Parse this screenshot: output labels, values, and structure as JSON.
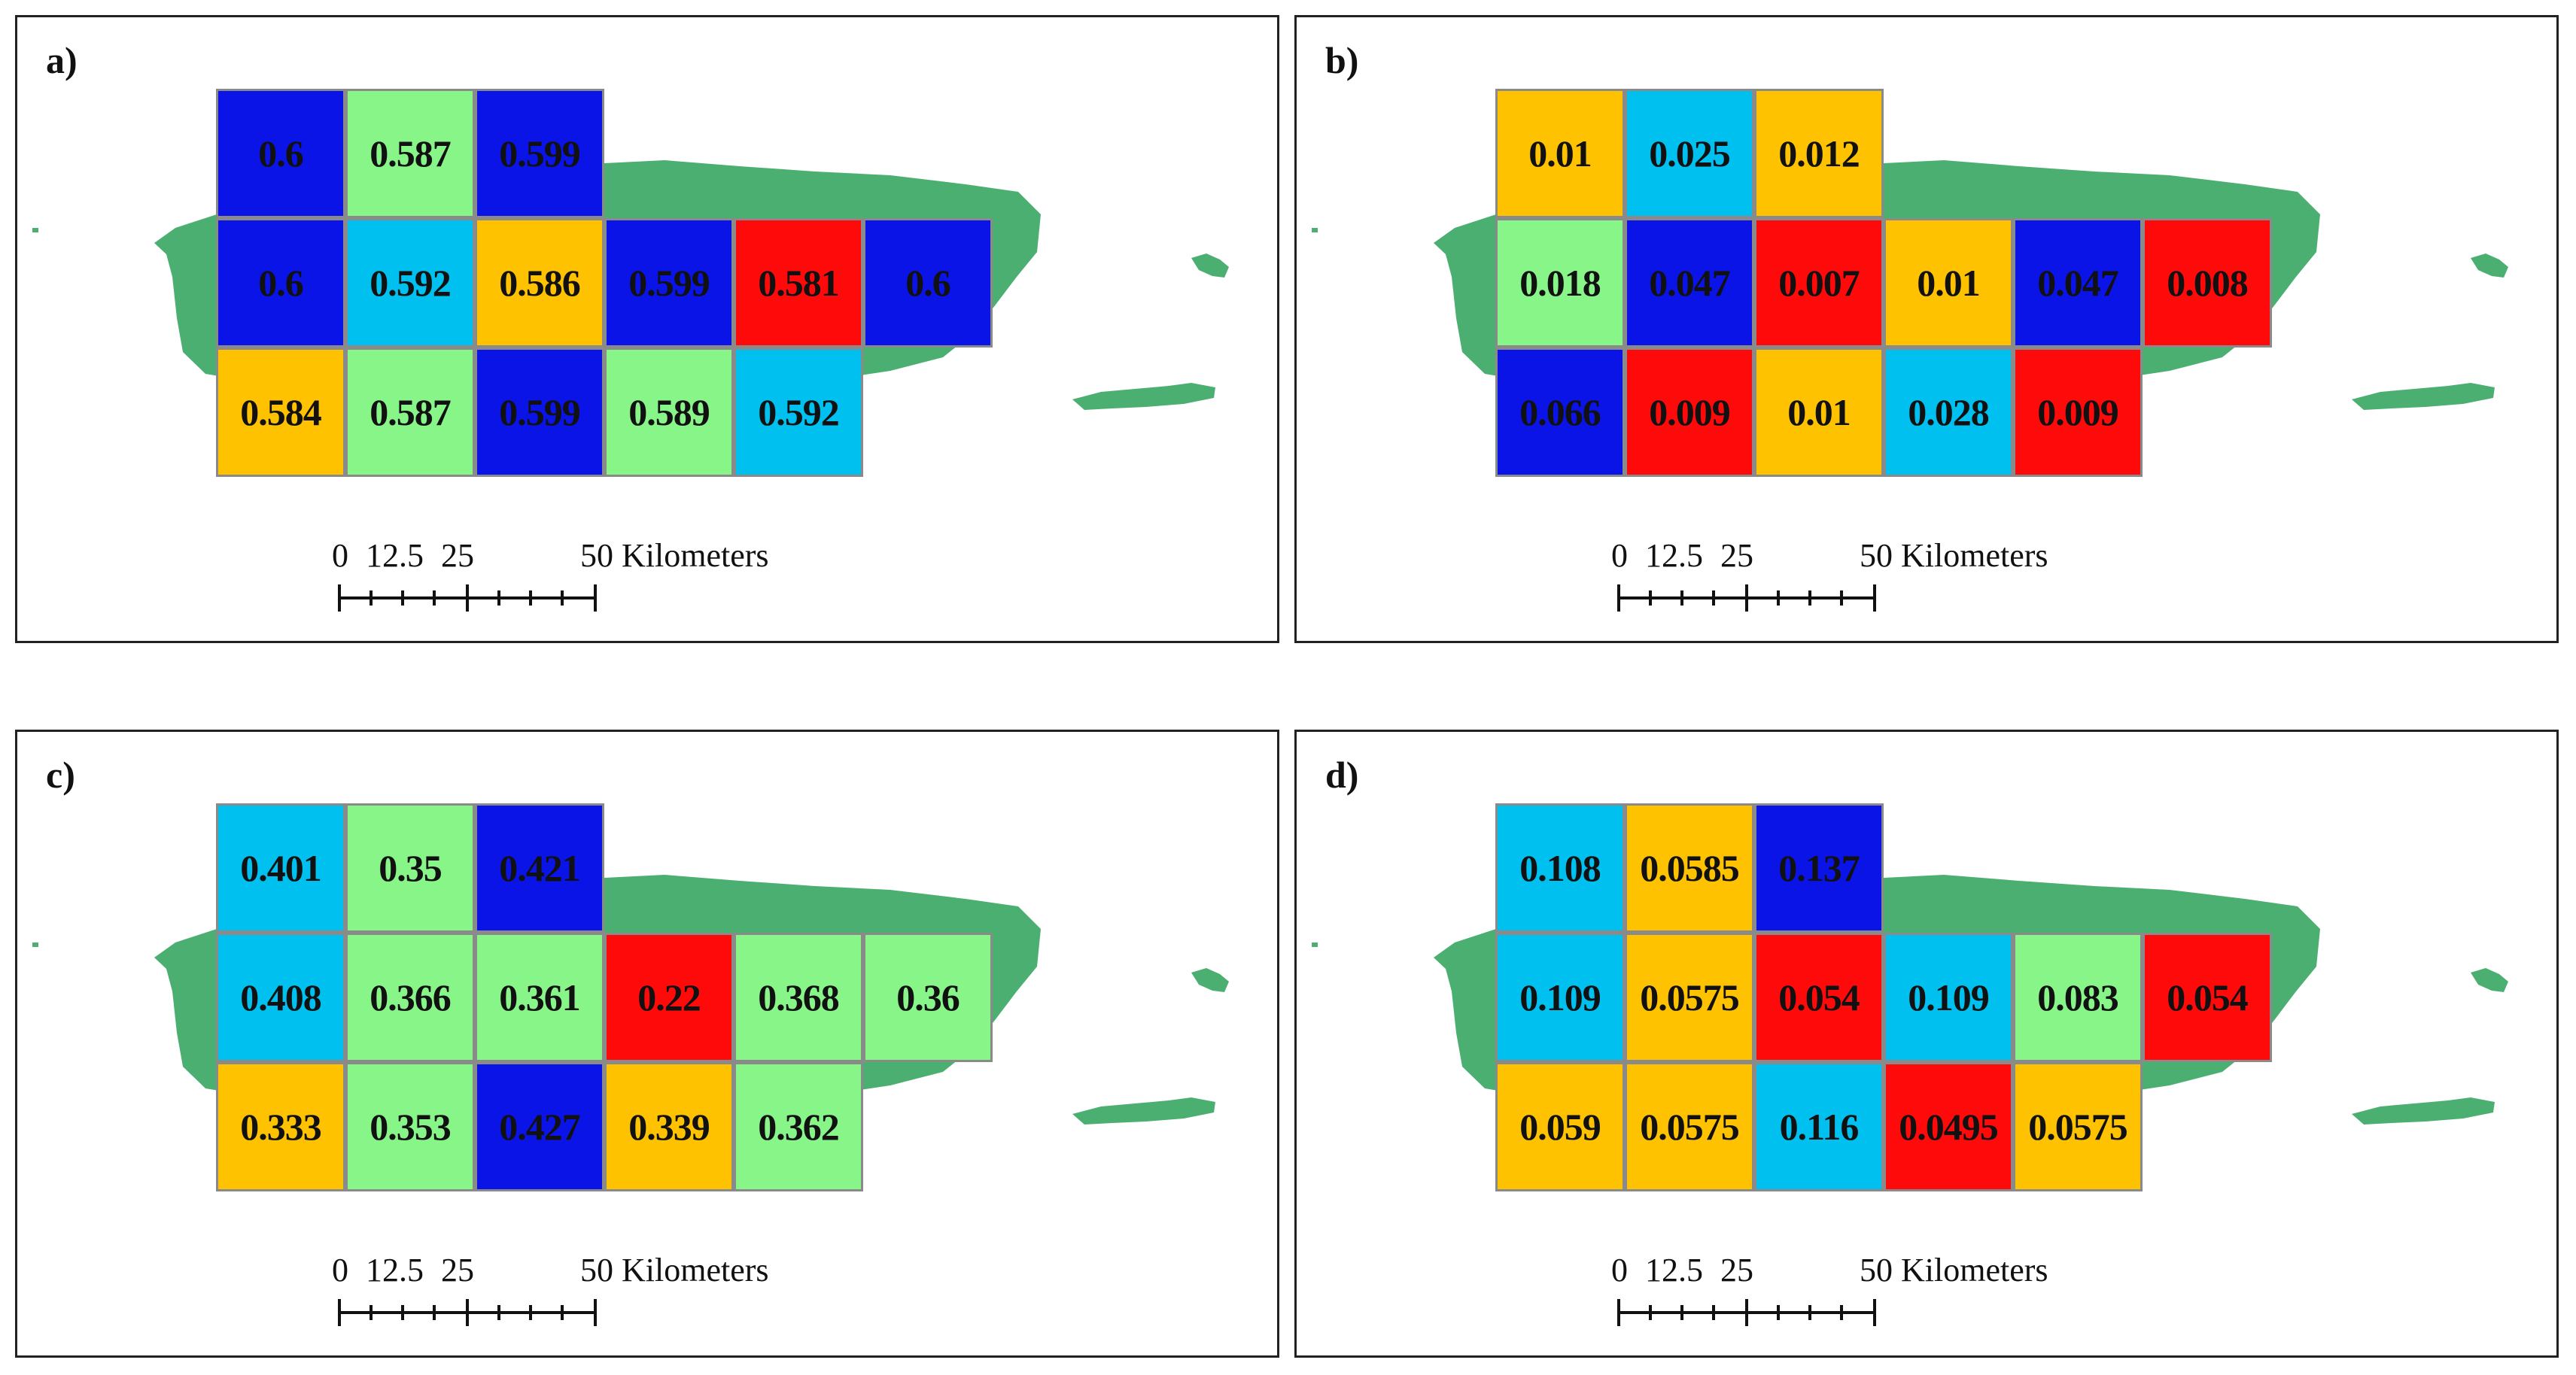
{
  "colors": {
    "land": "#4caf72",
    "blue": "#0a14e6",
    "light_blue": "#00c0f0",
    "green": "#88f588",
    "orange": "#ffc200",
    "red": "#ff0a0a"
  },
  "scale_bar": {
    "labels": [
      "0",
      "12.5",
      "25",
      "50 Kilometers"
    ]
  },
  "panels": [
    {
      "label": "a)",
      "cells": [
        {
          "row": 0,
          "col": 0,
          "value": "0.6",
          "color": "blue"
        },
        {
          "row": 0,
          "col": 1,
          "value": "0.587",
          "color": "green"
        },
        {
          "row": 0,
          "col": 2,
          "value": "0.599",
          "color": "blue"
        },
        {
          "row": 1,
          "col": 0,
          "value": "0.6",
          "color": "blue"
        },
        {
          "row": 1,
          "col": 1,
          "value": "0.592",
          "color": "light_blue"
        },
        {
          "row": 1,
          "col": 2,
          "value": "0.586",
          "color": "orange"
        },
        {
          "row": 1,
          "col": 3,
          "value": "0.599",
          "color": "blue"
        },
        {
          "row": 1,
          "col": 4,
          "value": "0.581",
          "color": "red"
        },
        {
          "row": 1,
          "col": 5,
          "value": "0.6",
          "color": "blue"
        },
        {
          "row": 2,
          "col": 0,
          "value": "0.584",
          "color": "orange"
        },
        {
          "row": 2,
          "col": 1,
          "value": "0.587",
          "color": "green"
        },
        {
          "row": 2,
          "col": 2,
          "value": "0.599",
          "color": "blue"
        },
        {
          "row": 2,
          "col": 3,
          "value": "0.589",
          "color": "green"
        },
        {
          "row": 2,
          "col": 4,
          "value": "0.592",
          "color": "light_blue"
        }
      ]
    },
    {
      "label": "b)",
      "cells": [
        {
          "row": 0,
          "col": 0,
          "value": "0.01",
          "color": "orange"
        },
        {
          "row": 0,
          "col": 1,
          "value": "0.025",
          "color": "light_blue"
        },
        {
          "row": 0,
          "col": 2,
          "value": "0.012",
          "color": "orange"
        },
        {
          "row": 1,
          "col": 0,
          "value": "0.018",
          "color": "green"
        },
        {
          "row": 1,
          "col": 1,
          "value": "0.047",
          "color": "blue"
        },
        {
          "row": 1,
          "col": 2,
          "value": "0.007",
          "color": "red"
        },
        {
          "row": 1,
          "col": 3,
          "value": "0.01",
          "color": "orange"
        },
        {
          "row": 1,
          "col": 4,
          "value": "0.047",
          "color": "blue"
        },
        {
          "row": 1,
          "col": 5,
          "value": "0.008",
          "color": "red"
        },
        {
          "row": 2,
          "col": 0,
          "value": "0.066",
          "color": "blue"
        },
        {
          "row": 2,
          "col": 1,
          "value": "0.009",
          "color": "red"
        },
        {
          "row": 2,
          "col": 2,
          "value": "0.01",
          "color": "orange"
        },
        {
          "row": 2,
          "col": 3,
          "value": "0.028",
          "color": "light_blue"
        },
        {
          "row": 2,
          "col": 4,
          "value": "0.009",
          "color": "red"
        }
      ]
    },
    {
      "label": "c)",
      "cells": [
        {
          "row": 0,
          "col": 0,
          "value": "0.401",
          "color": "light_blue"
        },
        {
          "row": 0,
          "col": 1,
          "value": "0.35",
          "color": "green"
        },
        {
          "row": 0,
          "col": 2,
          "value": "0.421",
          "color": "blue"
        },
        {
          "row": 1,
          "col": 0,
          "value": "0.408",
          "color": "light_blue"
        },
        {
          "row": 1,
          "col": 1,
          "value": "0.366",
          "color": "green"
        },
        {
          "row": 1,
          "col": 2,
          "value": "0.361",
          "color": "green"
        },
        {
          "row": 1,
          "col": 3,
          "value": "0.22",
          "color": "red"
        },
        {
          "row": 1,
          "col": 4,
          "value": "0.368",
          "color": "green"
        },
        {
          "row": 1,
          "col": 5,
          "value": "0.36",
          "color": "green"
        },
        {
          "row": 2,
          "col": 0,
          "value": "0.333",
          "color": "orange"
        },
        {
          "row": 2,
          "col": 1,
          "value": "0.353",
          "color": "green"
        },
        {
          "row": 2,
          "col": 2,
          "value": "0.427",
          "color": "blue"
        },
        {
          "row": 2,
          "col": 3,
          "value": "0.339",
          "color": "orange"
        },
        {
          "row": 2,
          "col": 4,
          "value": "0.362",
          "color": "green"
        }
      ]
    },
    {
      "label": "d)",
      "cells": [
        {
          "row": 0,
          "col": 0,
          "value": "0.108",
          "color": "light_blue"
        },
        {
          "row": 0,
          "col": 1,
          "value": "0.0585",
          "color": "orange"
        },
        {
          "row": 0,
          "col": 2,
          "value": "0.137",
          "color": "blue"
        },
        {
          "row": 1,
          "col": 0,
          "value": "0.109",
          "color": "light_blue"
        },
        {
          "row": 1,
          "col": 1,
          "value": "0.0575",
          "color": "orange"
        },
        {
          "row": 1,
          "col": 2,
          "value": "0.054",
          "color": "red"
        },
        {
          "row": 1,
          "col": 3,
          "value": "0.109",
          "color": "light_blue"
        },
        {
          "row": 1,
          "col": 4,
          "value": "0.083",
          "color": "green"
        },
        {
          "row": 1,
          "col": 5,
          "value": "0.054",
          "color": "red"
        },
        {
          "row": 2,
          "col": 0,
          "value": "0.059",
          "color": "orange"
        },
        {
          "row": 2,
          "col": 1,
          "value": "0.0575",
          "color": "orange"
        },
        {
          "row": 2,
          "col": 2,
          "value": "0.116",
          "color": "light_blue"
        },
        {
          "row": 2,
          "col": 3,
          "value": "0.0495",
          "color": "red"
        },
        {
          "row": 2,
          "col": 4,
          "value": "0.0575",
          "color": "orange"
        }
      ]
    }
  ]
}
